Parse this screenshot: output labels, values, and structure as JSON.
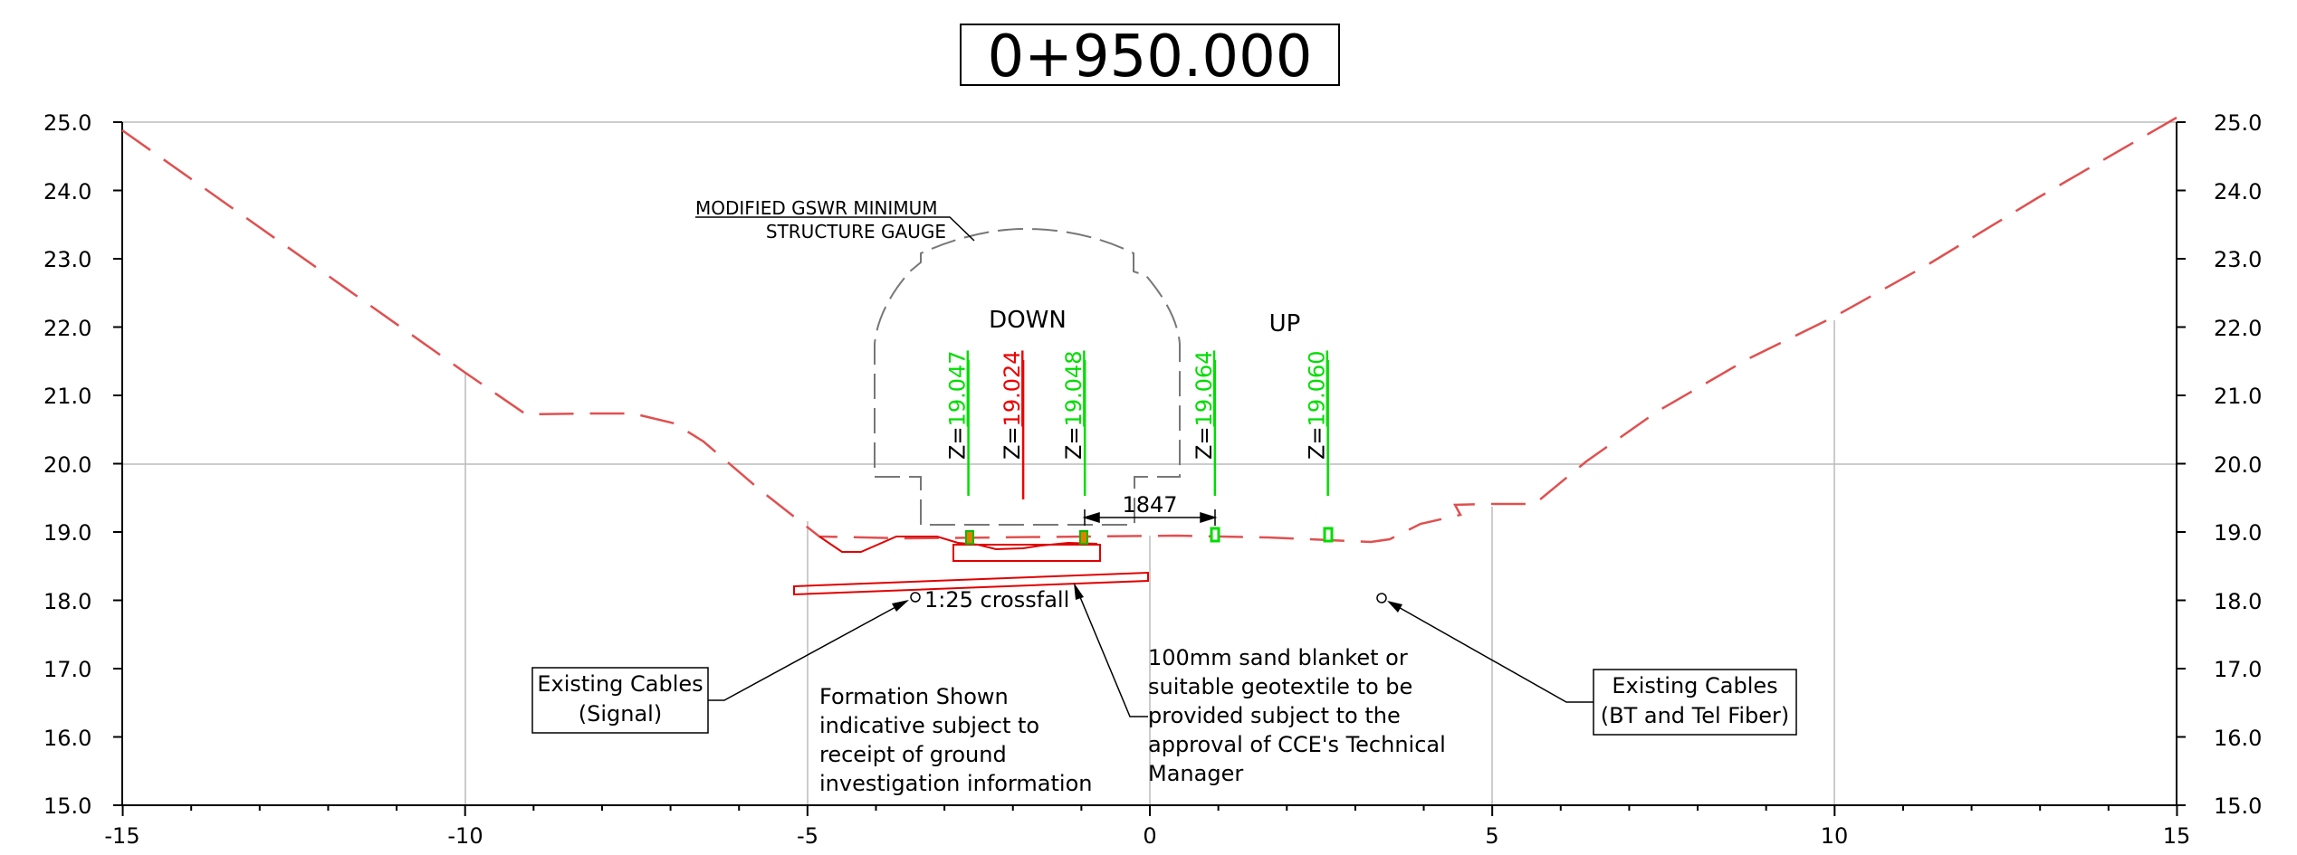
{
  "title": "0+950.000",
  "axes": {
    "x_ticks": [
      "-15",
      "-10",
      "-5",
      "0",
      "5",
      "10",
      "15"
    ],
    "y_ticks": [
      "25.0",
      "24.0",
      "23.0",
      "22.0",
      "21.0",
      "20.0",
      "19.0",
      "18.0",
      "17.0",
      "16.0",
      "15.0"
    ]
  },
  "labels": {
    "gauge_line1": "MODIFIED GSWR MINIMUM",
    "gauge_line2": "STRUCTURE GAUGE",
    "down": "DOWN",
    "up": "UP",
    "dimension": "1847",
    "crossfall": "1:25 crossfall",
    "cables_signal_line1": "Existing Cables",
    "cables_signal_line2": "(Signal)",
    "cables_bt_line1": "Existing Cables",
    "cables_bt_line2": "(BT and Tel Fiber)",
    "formation_lines": [
      "Formation Shown",
      "indicative subject to",
      "receipt of ground",
      "investigation information"
    ],
    "sand_lines": [
      "100mm sand blanket or",
      "suitable geotextile to be",
      "provided subject to the",
      "approval of CCE's Technical",
      "Manager"
    ]
  },
  "levels": [
    {
      "prefix": "Z=",
      "value": "19.047",
      "color": "#00dd00",
      "x": -2.65
    },
    {
      "prefix": "Z=",
      "value": "19.024",
      "color": "#ee0000",
      "x": -1.85
    },
    {
      "prefix": "Z=",
      "value": "19.048",
      "color": "#00dd00",
      "x": -0.95
    },
    {
      "prefix": "Z=",
      "value": "19.064",
      "color": "#00dd00",
      "x": 0.95
    },
    {
      "prefix": "Z=",
      "value": "19.060",
      "color": "#00dd00",
      "x": 2.6
    }
  ],
  "colors": {
    "ground": "#e05050",
    "formation": "#e00000",
    "gauge": "#777777",
    "grid": "#bbbbbb",
    "level_green": "#00dd00",
    "level_red": "#ee0000"
  }
}
